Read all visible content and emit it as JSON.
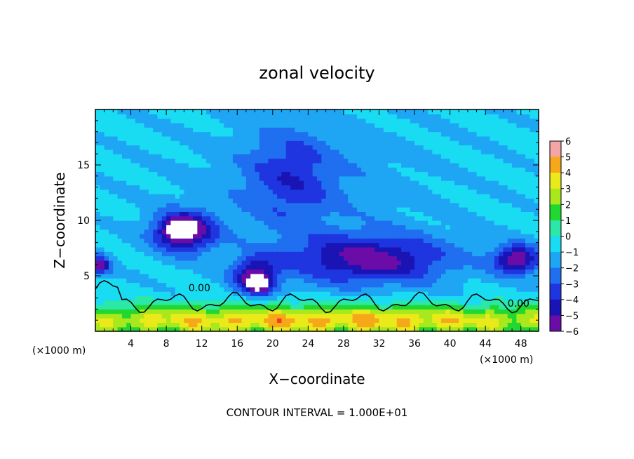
{
  "chart_data": {
    "type": "heatmap",
    "title": "zonal velocity",
    "xlabel": "X−coordinate",
    "ylabel": "Z−coordinate",
    "x_unit_left": "(×1000 m)",
    "x_unit_right": "(×1000 m)",
    "xlim": [
      0,
      50
    ],
    "ylim": [
      0,
      20
    ],
    "x_ticks": [
      4,
      8,
      12,
      16,
      20,
      24,
      28,
      32,
      36,
      40,
      44,
      48
    ],
    "y_ticks": [
      5,
      10,
      15
    ],
    "contour_label": "0.00",
    "contour_interval_text": "CONTOUR INTERVAL = 1.000E+01",
    "colorbar": {
      "ticks": [
        "6",
        "5",
        "4",
        "3",
        "2",
        "1",
        "0",
        "−1",
        "−2",
        "−3",
        "−4",
        "−5",
        "−6"
      ],
      "range": [
        -6,
        6
      ]
    },
    "features": [
      {
        "name": "lower-jet-west",
        "x": 10,
        "z": 9,
        "sx": 3.5,
        "sz": 1.8,
        "value": -5.5
      },
      {
        "name": "lower-jet-core",
        "x": 9.5,
        "z": 9.3,
        "sx": 1.6,
        "sz": 0.8,
        "value": -3.0
      },
      {
        "name": "descent-band",
        "x": 18,
        "z": 5,
        "sx": 2.5,
        "sz": 1.6,
        "value": -4.8
      },
      {
        "name": "descent-core",
        "x": 18.5,
        "z": 4.2,
        "sx": 1.4,
        "sz": 0.7,
        "value": -3.0
      },
      {
        "name": "mid-trough",
        "x": 31,
        "z": 6.5,
        "sx": 9,
        "sz": 2.2,
        "value": -4.6
      },
      {
        "name": "upper-trough",
        "x": 22,
        "z": 14,
        "sx": 5,
        "sz": 4.5,
        "value": -2.2
      },
      {
        "name": "east-jet",
        "x": 47.5,
        "z": 6.5,
        "sx": 2.6,
        "sz": 1.3,
        "value": -5.2
      },
      {
        "name": "west-edge-jet",
        "x": 0.5,
        "z": 6,
        "sx": 1.2,
        "sz": 0.9,
        "value": -4.5
      },
      {
        "name": "surface-flow",
        "x": 25,
        "z": 1,
        "sx": 40,
        "sz": 1.4,
        "value": 5.0
      }
    ],
    "colors": {
      "background_field": "#2fe6a8",
      "contour": "#000000"
    }
  }
}
